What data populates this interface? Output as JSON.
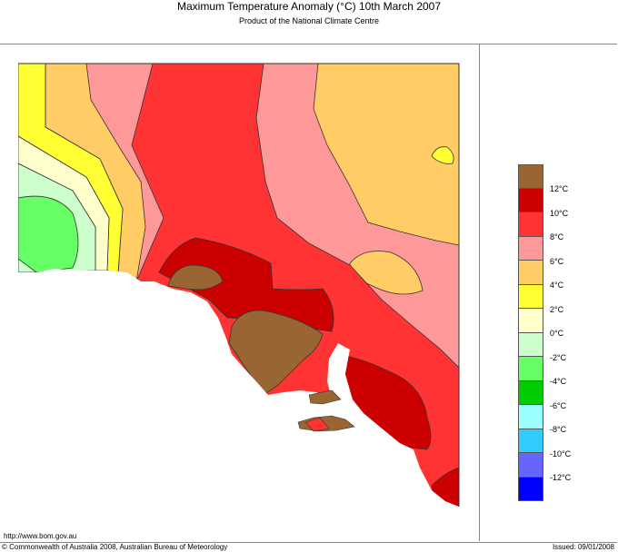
{
  "header": {
    "title": "Maximum Temperature Anomaly (°C)  10th March 2007",
    "subtitle": "Product of the National Climate Centre"
  },
  "legend": {
    "swatches": [
      {
        "color": "#996633",
        "range": "above 12°C"
      },
      {
        "color": "#CC0000",
        "range": "10 to 12°C"
      },
      {
        "color": "#FF3333",
        "range": "8 to 10°C"
      },
      {
        "color": "#FF9999",
        "range": "6 to 8°C"
      },
      {
        "color": "#FFCC66",
        "range": "4 to 6°C"
      },
      {
        "color": "#FFFF33",
        "range": "2 to 4°C"
      },
      {
        "color": "#FFFFCC",
        "range": "0 to 2°C"
      },
      {
        "color": "#CCFFCC",
        "range": "-2 to 0°C"
      },
      {
        "color": "#66FF66",
        "range": "-4 to -2°C"
      },
      {
        "color": "#00CC00",
        "range": "-6 to -4°C"
      },
      {
        "color": "#99FFFF",
        "range": "-8 to -6°C"
      },
      {
        "color": "#33CCFF",
        "range": "-10 to -8°C"
      },
      {
        "color": "#6666FF",
        "range": "-12 to -10°C"
      },
      {
        "color": "#0000FF",
        "range": "below -12°C"
      }
    ],
    "labels": [
      "12°C",
      "10°C",
      "8°C",
      "6°C",
      "4°C",
      "2°C",
      "0°C",
      "-2°C",
      "-4°C",
      "-6°C",
      "-8°C",
      "-10°C",
      "-12°C"
    ]
  },
  "footer": {
    "url": "http://www.bom.gov.au",
    "copyright": "© Commonwealth of Australia 2008, Australian Bureau of Meteorology",
    "issued": "Issued: 09/01/2008"
  }
}
